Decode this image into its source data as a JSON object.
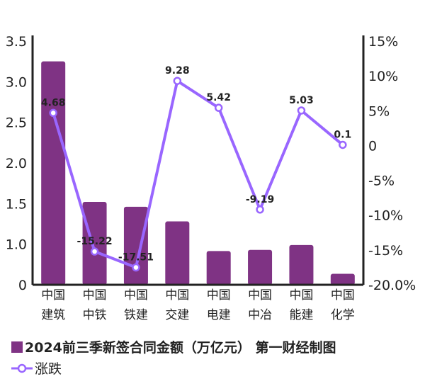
{
  "chart_data": {
    "type": "bar+line",
    "categories": [
      [
        "中国",
        "建筑"
      ],
      [
        "中国",
        "中铁"
      ],
      [
        "中国",
        "铁建"
      ],
      [
        "中国",
        "交建"
      ],
      [
        "中国",
        "电建"
      ],
      [
        "中国",
        "中冶"
      ],
      [
        "中国",
        "能建"
      ],
      [
        "中国",
        "化学"
      ]
    ],
    "series": [
      {
        "name": "2024前三季新签合同金额（万亿元） 第一财经制图",
        "type": "bar",
        "axis": "left",
        "color": "#7f3384",
        "values": [
          3.25,
          1.52,
          1.46,
          1.28,
          0.83,
          0.86,
          0.98,
          0.27
        ]
      },
      {
        "name": "涨跌",
        "type": "line",
        "axis": "right",
        "color": "#9966ff",
        "values": [
          4.68,
          -15.22,
          -17.51,
          9.28,
          5.42,
          -9.19,
          5.03,
          0.1
        ],
        "labels": [
          "4.68",
          "-15.22",
          "-17.51",
          "9.28",
          "5.42",
          "-9.19",
          "5.03",
          "0.1"
        ]
      }
    ],
    "left_axis": {
      "ticks": [
        0,
        1.0,
        1.5,
        2.0,
        2.5,
        3.0,
        3.5
      ],
      "tick_labels": [
        "0",
        "1.0",
        "1.5",
        "2.0",
        "2.5",
        "3.0",
        "3.5"
      ]
    },
    "right_axis": {
      "ylim": [
        -20,
        15
      ],
      "ticks": [
        -20,
        -15,
        -10,
        -5,
        0,
        5,
        10,
        15
      ],
      "tick_labels": [
        "-20.0%",
        "-15%",
        "-10%",
        "-5%",
        "0",
        "5%",
        "10%",
        "15%"
      ]
    },
    "grid": false,
    "legend_position": "bottom-left"
  }
}
